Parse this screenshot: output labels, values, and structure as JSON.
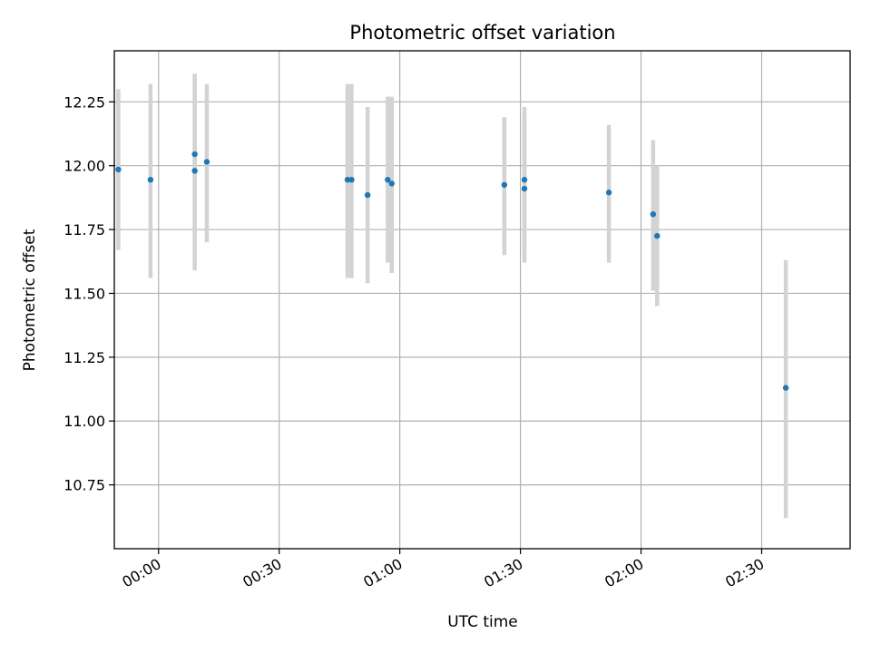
{
  "chart_data": {
    "type": "scatter",
    "title": "Photometric offset variation",
    "xlabel": "UTC time",
    "ylabel": "Photometric offset",
    "x_reference_date": "",
    "xlim": [
      "23:49",
      "02:52"
    ],
    "ylim": [
      10.5,
      12.45
    ],
    "x_ticks": [
      "00:00",
      "00:30",
      "01:00",
      "01:30",
      "02:00",
      "02:30"
    ],
    "y_ticks": [
      10.75,
      11.0,
      11.25,
      11.5,
      11.75,
      12.0,
      12.25
    ],
    "grid": true,
    "colors": {
      "points": "#1f77b4",
      "errorbars": "#d3d3d3"
    },
    "points": [
      {
        "x": "23:50",
        "y": 11.985,
        "yerr": [
          11.67,
          12.3
        ]
      },
      {
        "x": "23:58",
        "y": 11.945,
        "yerr": [
          11.56,
          12.32
        ]
      },
      {
        "x": "00:09",
        "y": 12.045,
        "yerr": [
          11.73,
          12.36
        ]
      },
      {
        "x": "00:09",
        "y": 11.98,
        "yerr": [
          11.59,
          12.36
        ]
      },
      {
        "x": "00:12",
        "y": 12.015,
        "yerr": [
          11.7,
          12.32
        ]
      },
      {
        "x": "00:47",
        "y": 11.945,
        "yerr": [
          11.56,
          12.32
        ]
      },
      {
        "x": "00:48",
        "y": 11.945,
        "yerr": [
          11.56,
          12.32
        ]
      },
      {
        "x": "00:52",
        "y": 11.885,
        "yerr": [
          11.54,
          12.23
        ]
      },
      {
        "x": "00:57",
        "y": 11.945,
        "yerr": [
          11.62,
          12.27
        ]
      },
      {
        "x": "00:58",
        "y": 11.93,
        "yerr": [
          11.58,
          12.27
        ]
      },
      {
        "x": "01:26",
        "y": 11.925,
        "yerr": [
          11.65,
          12.19
        ]
      },
      {
        "x": "01:31",
        "y": 11.945,
        "yerr": [
          11.66,
          12.23
        ]
      },
      {
        "x": "01:31",
        "y": 11.91,
        "yerr": [
          11.62,
          12.2
        ]
      },
      {
        "x": "01:52",
        "y": 11.895,
        "yerr": [
          11.62,
          12.16
        ]
      },
      {
        "x": "02:03",
        "y": 11.81,
        "yerr": [
          11.51,
          12.1
        ]
      },
      {
        "x": "02:04",
        "y": 11.725,
        "yerr": [
          11.45,
          12.0
        ]
      },
      {
        "x": "02:36",
        "y": 11.13,
        "yerr": [
          10.62,
          11.63
        ]
      }
    ]
  }
}
